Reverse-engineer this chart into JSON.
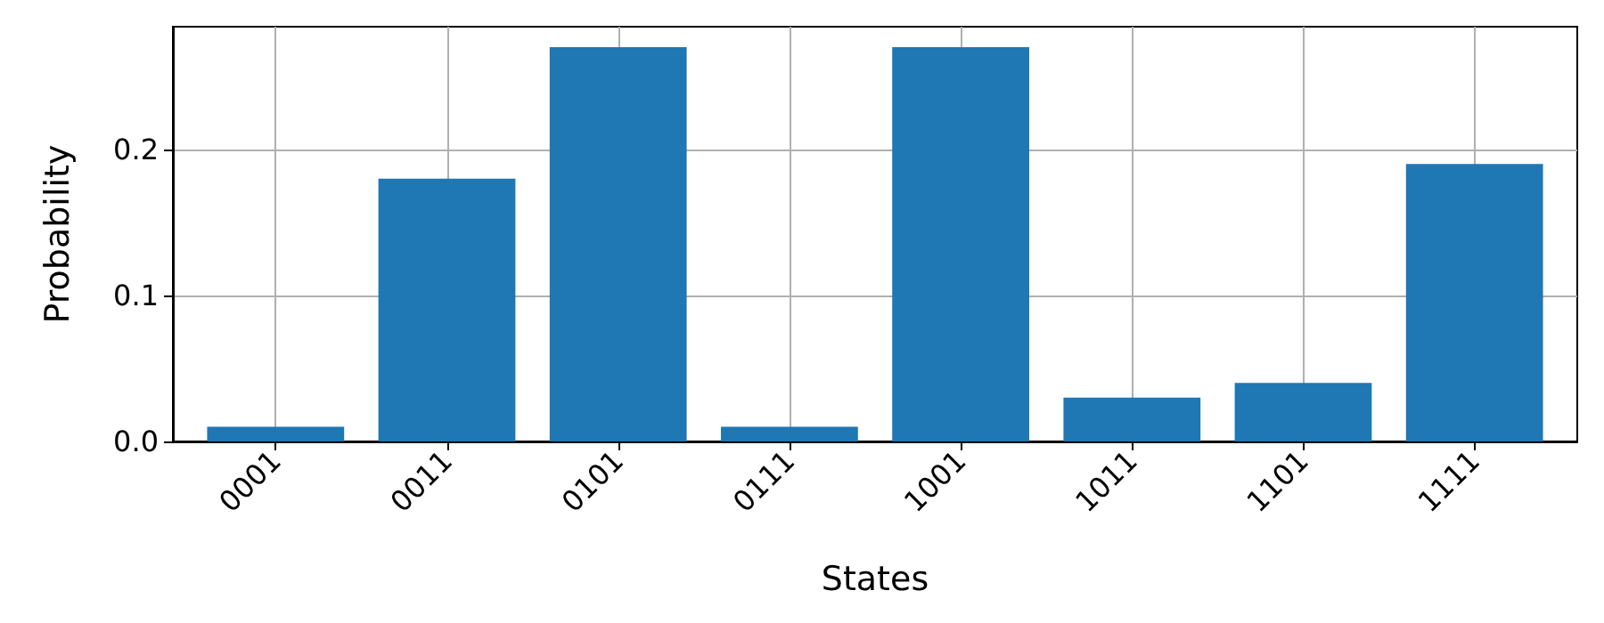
{
  "chart_data": {
    "type": "bar",
    "xlabel": "States",
    "ylabel": "Probability",
    "categories": [
      "0001",
      "0011",
      "0101",
      "0111",
      "1001",
      "1011",
      "1101",
      "1111"
    ],
    "values": [
      0.01,
      0.18,
      0.27,
      0.01,
      0.27,
      0.03,
      0.04,
      0.19
    ],
    "color": "#1f77b4",
    "ylim": [
      0,
      0.284
    ],
    "yticks": [
      {
        "value": 0,
        "label": "0.0"
      },
      {
        "value": 0.1,
        "label": "0.1"
      },
      {
        "value": 0.2,
        "label": "0.2"
      }
    ],
    "grid": true
  }
}
